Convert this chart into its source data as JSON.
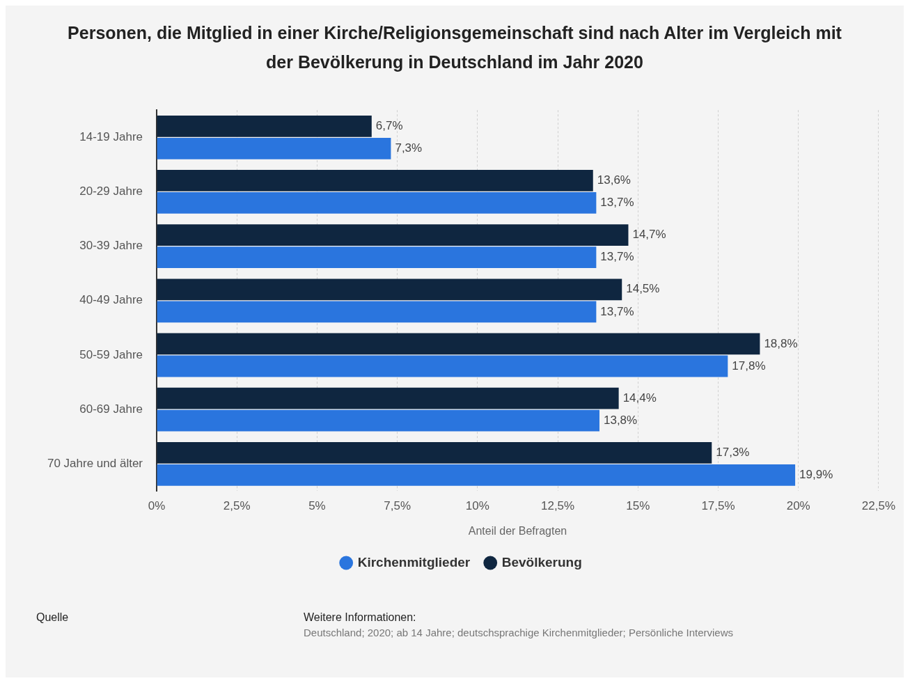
{
  "chart_data": {
    "type": "bar",
    "orientation": "horizontal",
    "title": "Personen, die Mitglied in einer Kirche/Religionsgemeinschaft sind nach Alter im Vergleich mit der Bevölkerung in Deutschland im Jahr 2020",
    "xlabel": "Anteil der Befragten",
    "categories": [
      "14-19 Jahre",
      "20-29 Jahre",
      "30-39 Jahre",
      "40-49 Jahre",
      "50-59 Jahre",
      "60-69 Jahre",
      "70 Jahre und älter"
    ],
    "series": [
      {
        "name": "Bevölkerung",
        "color": "#0f2640",
        "values": [
          6.7,
          13.6,
          14.7,
          14.5,
          18.8,
          14.4,
          17.3
        ],
        "value_labels": [
          "6,7%",
          "13,6%",
          "14,7%",
          "14,5%",
          "18,8%",
          "14,4%",
          "17,3%"
        ]
      },
      {
        "name": "Kirchenmitglieder",
        "color": "#2a75de",
        "values": [
          7.3,
          13.7,
          13.7,
          13.7,
          17.8,
          13.8,
          19.9
        ],
        "value_labels": [
          "7,3%",
          "13,7%",
          "13,7%",
          "13,7%",
          "17,8%",
          "13,8%",
          "19,9%"
        ]
      }
    ],
    "xlim": [
      0,
      22.5
    ],
    "xticks": [
      {
        "value": 0,
        "label": "0%"
      },
      {
        "value": 2.5,
        "label": "2,5%"
      },
      {
        "value": 5,
        "label": "5%"
      },
      {
        "value": 7.5,
        "label": "7,5%"
      },
      {
        "value": 10,
        "label": "10%"
      },
      {
        "value": 12.5,
        "label": "12,5%"
      },
      {
        "value": 15,
        "label": "15%"
      },
      {
        "value": 17.5,
        "label": "17,5%"
      },
      {
        "value": 20,
        "label": "20%"
      },
      {
        "value": 22.5,
        "label": "22,5%"
      }
    ],
    "grid": "x",
    "legend": "bottom",
    "annotations": [
      "Quelle",
      "Weitere Informationen:",
      "Deutschland; 2020; ab 14 Jahre; deutschsprachige Kirchenmitglieder; Persönliche Interviews"
    ]
  }
}
